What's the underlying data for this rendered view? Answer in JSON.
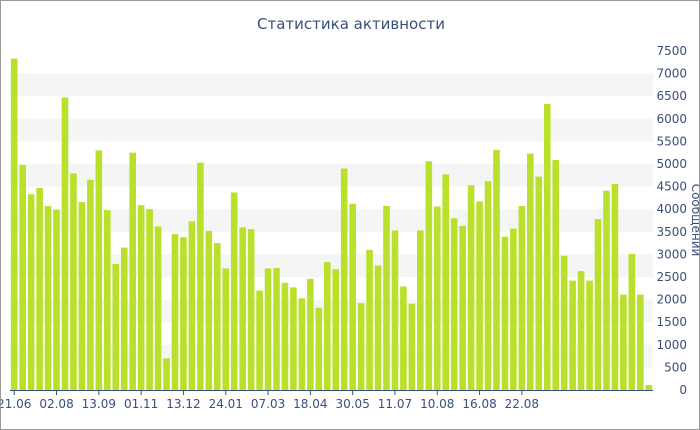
{
  "chart_data": {
    "type": "bar",
    "title": "Статистика активности",
    "xlabel": "",
    "ylabel": "Сообщений",
    "ylim": [
      0,
      7500
    ],
    "y_axis_side": "right",
    "grid": "alternating horizontal bands",
    "colors": {
      "bar": "#b9e02a",
      "band": "#f5f5f5",
      "axis": "#3a4f7a",
      "text": "#3a4f7a"
    },
    "y_ticks": [
      0,
      500,
      1000,
      1500,
      2000,
      2500,
      3000,
      3500,
      4000,
      4500,
      5000,
      5500,
      6000,
      6500,
      7000,
      7500
    ],
    "x_tick_labels": [
      {
        "index": 0,
        "label": "21.06"
      },
      {
        "index": 5,
        "label": "02.08"
      },
      {
        "index": 10,
        "label": "13.09"
      },
      {
        "index": 15,
        "label": "01.11"
      },
      {
        "index": 20,
        "label": "13.12"
      },
      {
        "index": 25,
        "label": "24.01"
      },
      {
        "index": 30,
        "label": "07.03"
      },
      {
        "index": 35,
        "label": "18.04"
      },
      {
        "index": 40,
        "label": "30.05"
      },
      {
        "index": 45,
        "label": "11.07"
      },
      {
        "index": 50,
        "label": "10.08"
      },
      {
        "index": 55,
        "label": "16.08"
      },
      {
        "index": 60,
        "label": "22.08"
      }
    ],
    "values": [
      7330,
      4980,
      4330,
      4470,
      4070,
      3990,
      6470,
      4790,
      4160,
      4650,
      5300,
      3980,
      2790,
      3150,
      5250,
      4090,
      4000,
      3620,
      700,
      3450,
      3380,
      3730,
      5030,
      3520,
      3250,
      2690,
      4370,
      3600,
      3560,
      2200,
      2690,
      2700,
      2370,
      2270,
      2030,
      2460,
      1820,
      2830,
      2670,
      4900,
      4120,
      1920,
      3100,
      2750,
      4070,
      3530,
      2290,
      1910,
      3530,
      5060,
      4060,
      4770,
      3800,
      3630,
      4530,
      4170,
      4620,
      5310,
      3390,
      3570,
      4070,
      5230,
      4720,
      6330,
      5090,
      2970,
      2420,
      2630,
      2420,
      3780,
      4410,
      4560,
      2110,
      3010,
      2110,
      110
    ]
  }
}
